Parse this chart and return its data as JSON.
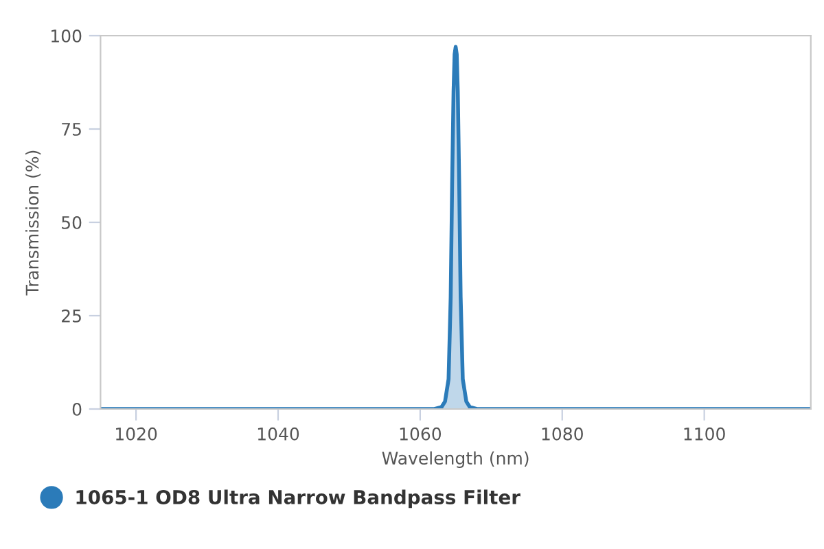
{
  "chart_data": {
    "type": "area",
    "xlabel": "Wavelength (nm)",
    "ylabel": "Transmission (%)",
    "xlim": [
      1015,
      1115
    ],
    "xticks": [
      1020,
      1040,
      1060,
      1080,
      1100
    ],
    "ylim": [
      0,
      100
    ],
    "yticks": [
      0,
      25,
      50,
      75,
      100
    ],
    "grid": false,
    "legend": "bottom left",
    "series": [
      {
        "name": "1065-1 OD8 Ultra Narrow Bandpass Filter",
        "color": "#2b7bb9",
        "x": [
          1015,
          1062,
          1063,
          1063.5,
          1064,
          1064.3,
          1064.5,
          1064.7,
          1064.85,
          1065,
          1065.15,
          1065.3,
          1065.5,
          1065.7,
          1066,
          1066.5,
          1067,
          1068,
          1115
        ],
        "values": [
          0,
          0,
          0.5,
          2,
          8,
          30,
          60,
          85,
          95,
          97,
          95,
          85,
          60,
          30,
          8,
          2,
          0.5,
          0,
          0
        ]
      }
    ]
  }
}
